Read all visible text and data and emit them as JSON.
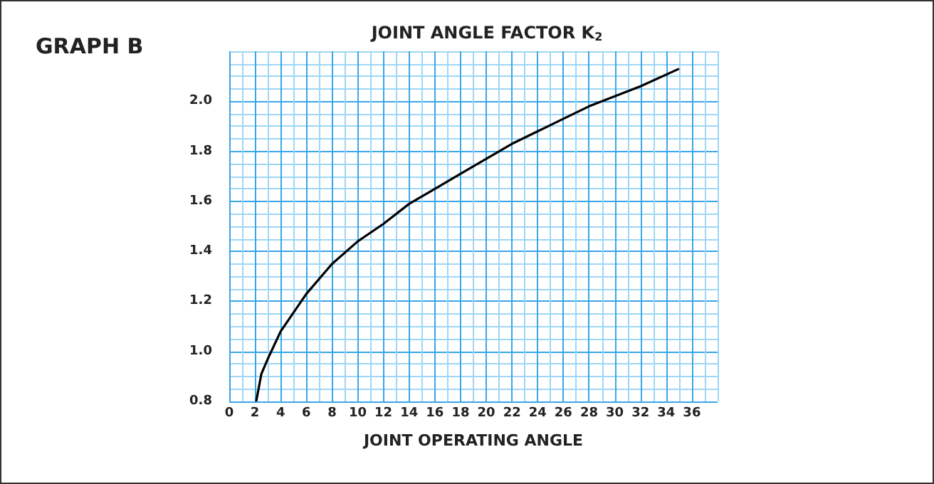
{
  "chart_data": {
    "type": "line",
    "title": "JOINT ANGLE FACTOR K$_{2}$",
    "xlabel": "JOINT OPERATING ANGLE",
    "annotations": [
      "GRAPH B"
    ],
    "series": [
      {
        "color": "#000000",
        "x": [
          2.1,
          2.5,
          3,
          4,
          6,
          8,
          10,
          12,
          14,
          16,
          18,
          20,
          22,
          24,
          26,
          28,
          30,
          32,
          35
        ],
        "values": [
          0.8,
          0.91,
          0.97,
          1.08,
          1.23,
          1.35,
          1.44,
          1.51,
          1.59,
          1.65,
          1.71,
          1.77,
          1.83,
          1.88,
          1.93,
          1.98,
          2.02,
          2.06,
          2.13
        ]
      }
    ],
    "xlim": [
      0,
      38
    ],
    "ylim": [
      0.8,
      2.2
    ],
    "xticks": [
      0,
      {
        "value": 1,
        "label": null
      },
      2,
      {
        "value": 3,
        "label": null
      },
      4,
      {
        "value": 5,
        "label": null
      },
      6,
      {
        "value": 7,
        "label": null
      },
      8,
      {
        "value": 9,
        "label": null
      },
      10,
      {
        "value": 11,
        "label": null
      },
      12,
      {
        "value": 13,
        "label": null
      },
      14,
      {
        "value": 15,
        "label": null
      },
      16,
      {
        "value": 17,
        "label": null
      },
      18,
      {
        "value": 19,
        "label": null
      },
      20,
      {
        "value": 21,
        "label": null
      },
      22,
      {
        "value": 23,
        "label": null
      },
      24,
      {
        "value": 25,
        "label": null
      },
      26,
      {
        "value": 27,
        "label": null
      },
      28,
      {
        "value": 29,
        "label": null
      },
      30,
      {
        "value": 31,
        "label": null
      },
      32,
      {
        "value": 33,
        "label": null
      },
      34,
      {
        "value": 35,
        "label": null
      },
      36,
      {
        "value": 37,
        "label": null
      },
      {
        "value": 38,
        "label": null
      }
    ],
    "yticks": [
      0.8,
      {
        "value": 0.85,
        "label": null
      },
      {
        "value": 0.9,
        "label": null
      },
      {
        "value": 0.95,
        "label": null
      },
      {
        "value": 1,
        "label": "1.0"
      },
      {
        "value": 1.05,
        "label": null
      },
      {
        "value": 1.1,
        "label": null
      },
      {
        "value": 1.15,
        "label": null
      },
      1.2,
      {
        "value": 1.25,
        "label": null
      },
      {
        "value": 1.3,
        "label": null
      },
      {
        "value": 1.35,
        "label": null
      },
      1.4,
      {
        "value": 1.45,
        "label": null
      },
      {
        "value": 1.5,
        "label": null
      },
      {
        "value": 1.55,
        "label": null
      },
      1.6,
      {
        "value": 1.65,
        "label": null
      },
      {
        "value": 1.7,
        "label": null
      },
      {
        "value": 1.75,
        "label": null
      },
      1.8,
      {
        "value": 1.85,
        "label": null
      },
      {
        "value": 1.9,
        "label": null
      },
      {
        "value": 1.95,
        "label": null
      },
      {
        "value": 2,
        "label": "2.0"
      },
      {
        "value": 2.05,
        "label": null
      },
      {
        "value": 2.1,
        "label": null
      },
      {
        "value": 2.15,
        "label": null
      },
      {
        "value": 2.2,
        "label": null
      }
    ],
    "grid": true,
    "marker": "none",
    "line_style": "solid"
  }
}
